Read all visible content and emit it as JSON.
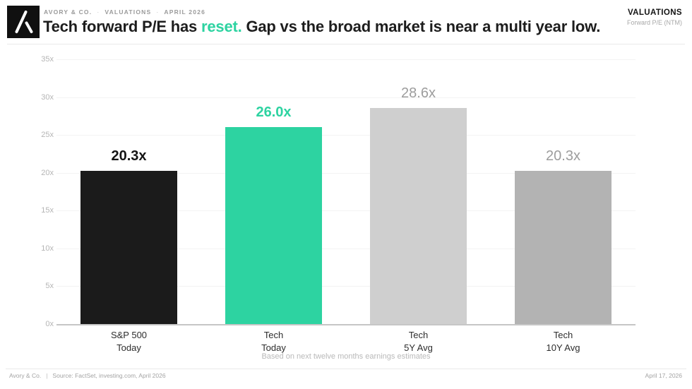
{
  "brand": {
    "kicker": [
      "AVORY & CO.",
      "VALUATIONS",
      "APRIL 2026"
    ],
    "kicker_separator": "·"
  },
  "header": {
    "title_prefix": "Tech forward P/E has ",
    "title_highlight": "reset.",
    "title_suffix": " Gap vs the broad market is near a multi year low.",
    "right_label": "VALUATIONS",
    "right_sublabel": "Forward P/E (NTM)"
  },
  "chart_data": {
    "type": "bar",
    "title": "Tech forward P/E has reset. Gap vs the broad market is near a multi year low.",
    "categories": [
      "S&P 500 Today",
      "Tech Today",
      "Tech 5Y Avg",
      "Tech 10Y Avg"
    ],
    "category_lines": [
      [
        "S&P 500",
        "Today"
      ],
      [
        "Tech",
        "Today"
      ],
      [
        "Tech",
        "5Y Avg"
      ],
      [
        "Tech",
        "10Y Avg"
      ]
    ],
    "values": [
      20.3,
      26.0,
      28.6,
      20.3
    ],
    "value_labels": [
      "20.3x",
      "26.0x",
      "28.6x",
      "20.3x"
    ],
    "bar_colors": [
      "#1b1b1b",
      "#2dd3a1",
      "#cfcfcf",
      "#b3b3b3"
    ],
    "value_label_colors": [
      "#141414",
      "#2dd3a1",
      "#9d9d9d",
      "#9d9d9d"
    ],
    "value_label_bold": [
      true,
      true,
      false,
      false
    ],
    "xlabel": "",
    "ylabel": "Forward P/E (NTM)",
    "ylim": [
      0,
      35
    ],
    "ytick_step": 5,
    "ytick_suffix": "x",
    "grid": true,
    "legend": "none",
    "caption": "Based on next twelve months earnings estimates"
  },
  "footer": {
    "brand": "Avory & Co.",
    "separator": "|",
    "source": "Source: FactSet, investing.com, April 2026",
    "date": "April 17, 2026"
  },
  "colors": {
    "accent_green": "#2dd3a1",
    "bar_black": "#1b1b1b",
    "bar_gray_light": "#cfcfcf",
    "bar_gray": "#b3b3b3"
  }
}
